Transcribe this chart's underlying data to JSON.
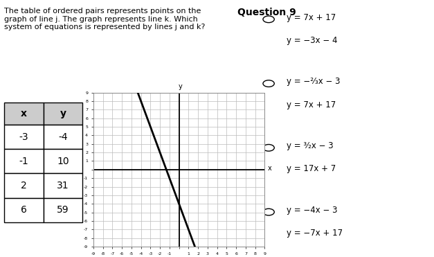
{
  "title": "Question 9",
  "question_text": "The table of ordered pairs represents points on the\ngraph of line j. The graph represents line k. Which\nsystem of equations is represented by lines j and k?",
  "table_headers": [
    "x",
    "y"
  ],
  "table_data": [
    [
      -3,
      -4
    ],
    [
      -1,
      10
    ],
    [
      2,
      31
    ],
    [
      6,
      59
    ]
  ],
  "graph": {
    "xlim": [
      -9,
      9
    ],
    "ylim": [
      -9,
      9
    ],
    "line_k_slope": -3,
    "line_k_intercept": -4,
    "line_color": "#000000",
    "grid_color": "#bbbbbb",
    "grid_linewidth": 0.5
  },
  "options_line1": [
    "y = 7x + 17",
    "y = −²⁄₃x − 3",
    "y = ³⁄₂x − 3",
    "y = −4x − 3"
  ],
  "options_line2": [
    "y = −3x − 4",
    "y = 7x + 17",
    "y = 17x + 7",
    "y = −7x + 17"
  ],
  "bg_color": "#ffffff",
  "text_color": "#000000",
  "table_header_bg": "#cccccc",
  "table_border_color": "#000000"
}
